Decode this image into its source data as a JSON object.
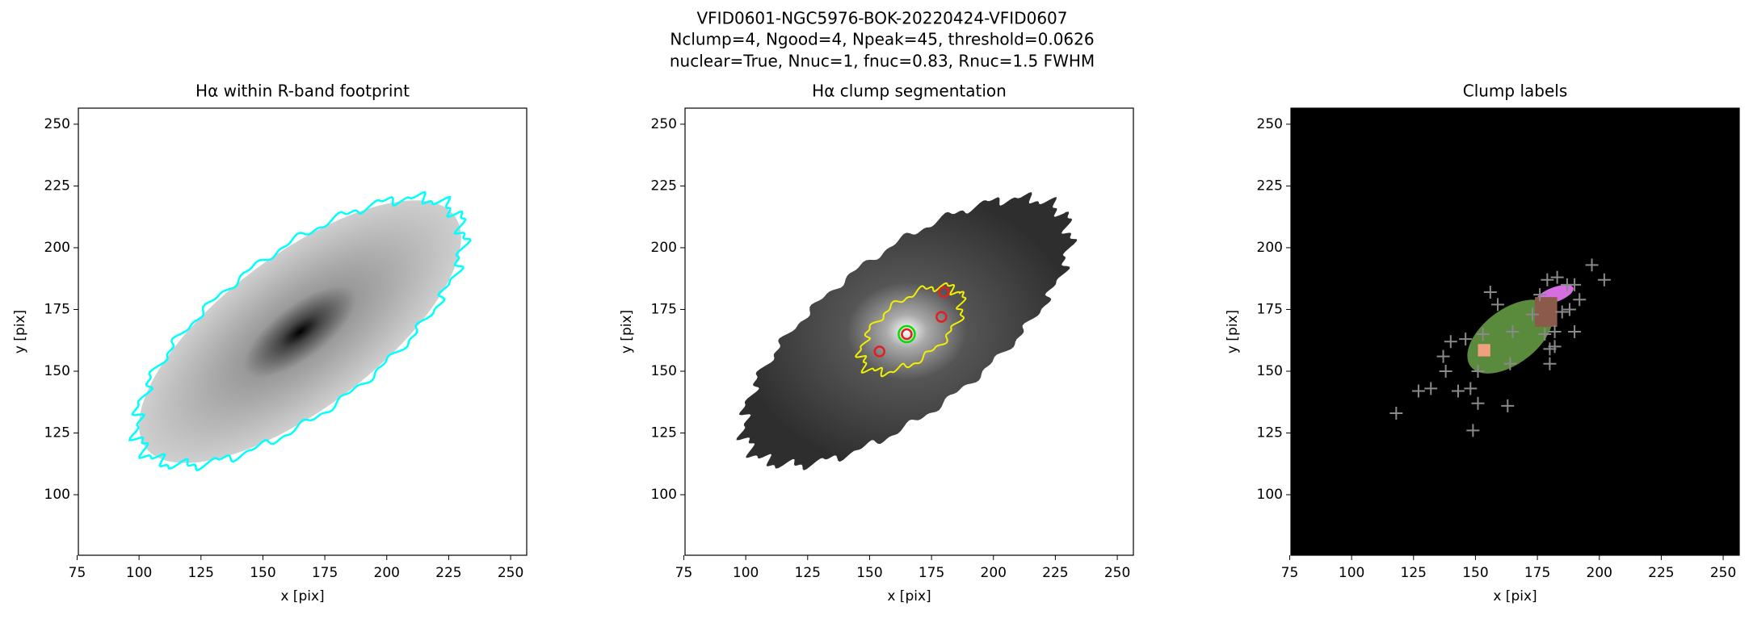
{
  "suptitle": [
    "VFID0601-NGC5976-BOK-20220424-VFID0607",
    "Nclump=4, Ngood=4, Npeak=45, threshold=0.0626",
    "nuclear=True, Nnuc=1, fnuc=0.83, Rnuc=1.5 FWHM"
  ],
  "chart_data": [
    {
      "type": "image",
      "title": "Hα within R-band footprint",
      "xlabel": "x [pix]",
      "ylabel": "y [pix]",
      "xlim": [
        75.5,
        256.5
      ],
      "ylim": [
        75.5,
        256.5
      ],
      "xticks": [
        75,
        100,
        125,
        150,
        175,
        200,
        225,
        250
      ],
      "yticks": [
        100,
        125,
        150,
        175,
        200,
        225,
        250
      ]
    },
    {
      "type": "image",
      "title": "Hα clump segmentation",
      "xlabel": "x [pix]",
      "ylabel": "y [pix]",
      "xlim": [
        75.5,
        256.5
      ],
      "ylim": [
        75.5,
        256.5
      ],
      "xticks": [
        75,
        100,
        125,
        150,
        175,
        200,
        225,
        250
      ],
      "yticks": [
        100,
        125,
        150,
        175,
        200,
        225,
        250
      ],
      "series": [
        {
          "color": "#00e000",
          "x": [
            165
          ],
          "values": [
            165
          ]
        },
        {
          "color": "#e02020",
          "x": [
            180,
            179,
            154,
            165
          ],
          "values": [
            182,
            172,
            158,
            165
          ]
        }
      ]
    },
    {
      "type": "image",
      "title": "Clump labels",
      "xlabel": "x [pix]",
      "ylabel": "y [pix]",
      "xlim": [
        75.5,
        256.5
      ],
      "ylim": [
        75.5,
        256.5
      ],
      "xticks": [
        75,
        100,
        125,
        150,
        175,
        200,
        225,
        250
      ],
      "yticks": [
        100,
        125,
        150,
        175,
        200,
        225,
        250
      ],
      "series": [
        {
          "color": "#8a8a8a",
          "x": [
            118,
            127,
            132,
            138,
            143,
            148,
            151,
            149,
            151,
            163,
            137,
            140,
            146,
            153,
            156,
            159,
            165,
            173,
            178,
            180,
            180,
            182,
            182,
            176,
            179,
            183,
            187,
            190,
            185,
            190,
            188,
            192,
            197,
            202,
            164
          ],
          "values": [
            133,
            142,
            143,
            150,
            142,
            143,
            150,
            126,
            137,
            136,
            156,
            162,
            163,
            165,
            182,
            177,
            166,
            173,
            165,
            159,
            153,
            160,
            166,
            181,
            187,
            188,
            185,
            185,
            174,
            166,
            175,
            179,
            193,
            187,
            153
          ]
        }
      ]
    }
  ]
}
